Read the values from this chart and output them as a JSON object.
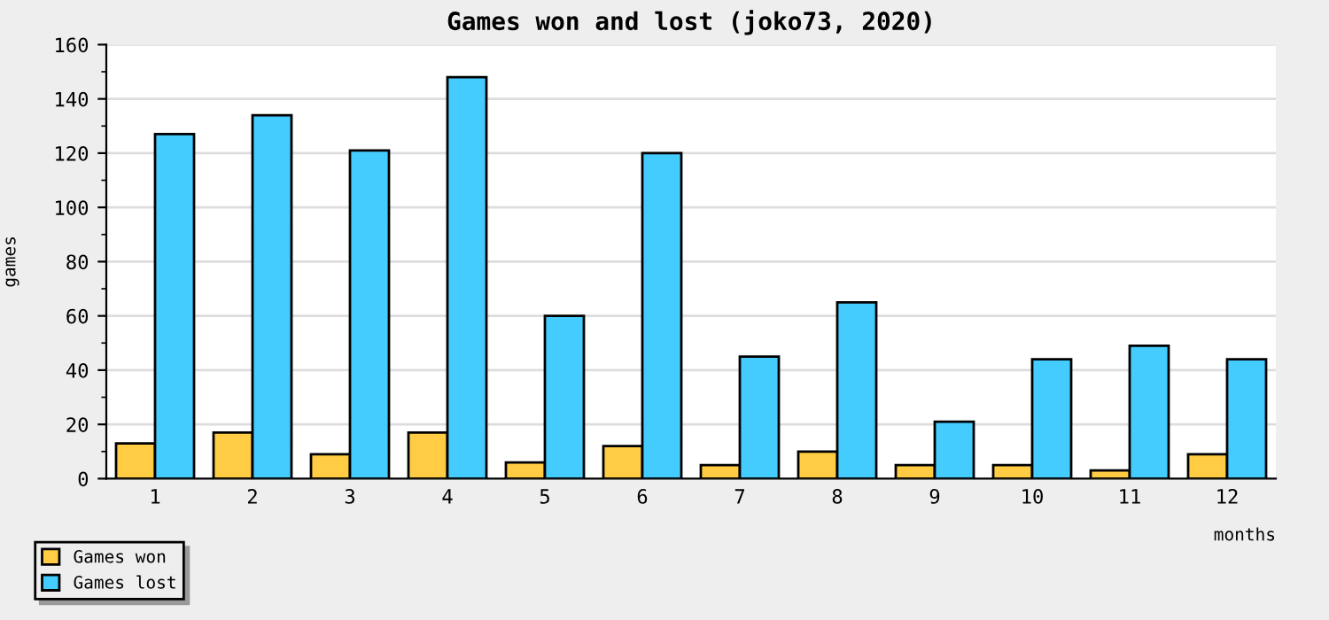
{
  "chart_data": {
    "type": "bar",
    "title": "Games won and lost (joko73, 2020)",
    "xlabel": "months",
    "ylabel": "games",
    "categories": [
      "1",
      "2",
      "3",
      "4",
      "5",
      "6",
      "7",
      "8",
      "9",
      "10",
      "11",
      "12"
    ],
    "series": [
      {
        "name": "Games won",
        "color": "#ffcc44",
        "values": [
          13,
          17,
          9,
          17,
          6,
          12,
          5,
          10,
          5,
          5,
          3,
          9
        ]
      },
      {
        "name": "Games lost",
        "color": "#44ccff",
        "values": [
          127,
          134,
          121,
          148,
          60,
          120,
          45,
          65,
          21,
          44,
          49,
          44
        ]
      }
    ],
    "ylim": [
      0,
      160
    ],
    "yticks": [
      0,
      20,
      40,
      60,
      80,
      100,
      120,
      140,
      160
    ],
    "grid": "y",
    "legend": "bottom left"
  }
}
